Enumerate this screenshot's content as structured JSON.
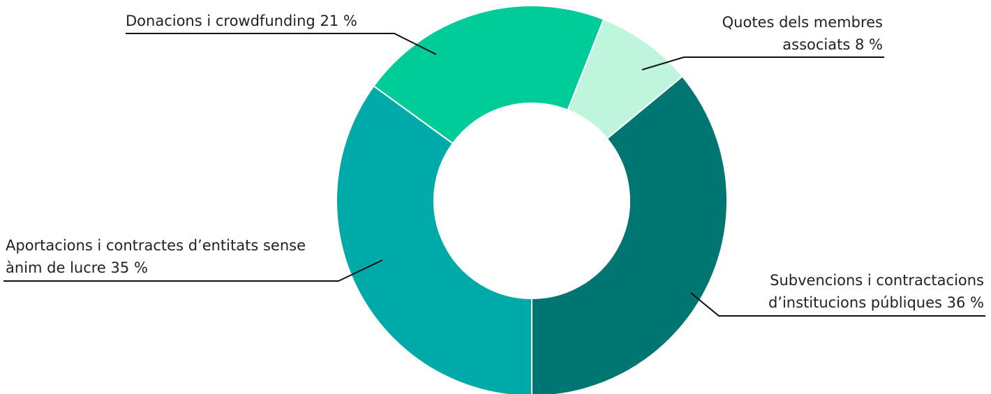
{
  "chart_data": {
    "type": "donut",
    "categories": [
      "Quotes dels membres associats",
      "Subvencions i contractacions d’institucions públiques",
      "Aportacions i contractes d’entitats sense ànim de lucre",
      "Donacions i crowdfunding"
    ],
    "values": [
      8,
      36,
      35,
      21
    ],
    "value_labels": [
      "8 %",
      "36 %",
      "35 %",
      "21 %"
    ],
    "colors": [
      "#bff5dd",
      "#007672",
      "#00aaa8",
      "#00cc99"
    ]
  }
}
